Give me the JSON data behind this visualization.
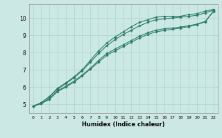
{
  "xlabel": "Humidex (Indice chaleur)",
  "bg_color": "#cce8e4",
  "grid_color": "#b0d8d0",
  "line_color": "#2a7a6a",
  "xlim": [
    -0.5,
    22.5
  ],
  "ylim": [
    4.5,
    10.8
  ],
  "xticks": [
    0,
    1,
    2,
    3,
    4,
    5,
    6,
    7,
    8,
    9,
    10,
    11,
    12,
    13,
    14,
    15,
    16,
    17,
    18,
    19,
    20,
    21,
    22
  ],
  "yticks": [
    5,
    6,
    7,
    8,
    9,
    10
  ],
  "series": [
    [
      4.9,
      5.1,
      5.45,
      5.95,
      6.25,
      6.6,
      7.0,
      7.55,
      8.1,
      8.55,
      8.9,
      9.2,
      9.5,
      9.75,
      9.9,
      10.05,
      10.1,
      10.1,
      10.1,
      10.2,
      10.25,
      10.4,
      10.5
    ],
    [
      4.9,
      5.1,
      5.45,
      5.9,
      6.2,
      6.55,
      6.95,
      7.45,
      7.95,
      8.4,
      8.75,
      9.05,
      9.3,
      9.55,
      9.75,
      9.9,
      9.95,
      10.0,
      10.05,
      10.1,
      10.15,
      10.3,
      10.45
    ],
    [
      4.9,
      5.05,
      5.35,
      5.8,
      6.05,
      6.35,
      6.7,
      7.1,
      7.55,
      7.95,
      8.2,
      8.45,
      8.7,
      8.95,
      9.15,
      9.3,
      9.38,
      9.42,
      9.48,
      9.55,
      9.65,
      9.8,
      10.4
    ],
    [
      4.9,
      5.05,
      5.3,
      5.75,
      6.0,
      6.3,
      6.65,
      7.05,
      7.45,
      7.85,
      8.1,
      8.35,
      8.6,
      8.85,
      9.05,
      9.2,
      9.28,
      9.35,
      9.42,
      9.5,
      9.62,
      9.78,
      10.38
    ]
  ]
}
